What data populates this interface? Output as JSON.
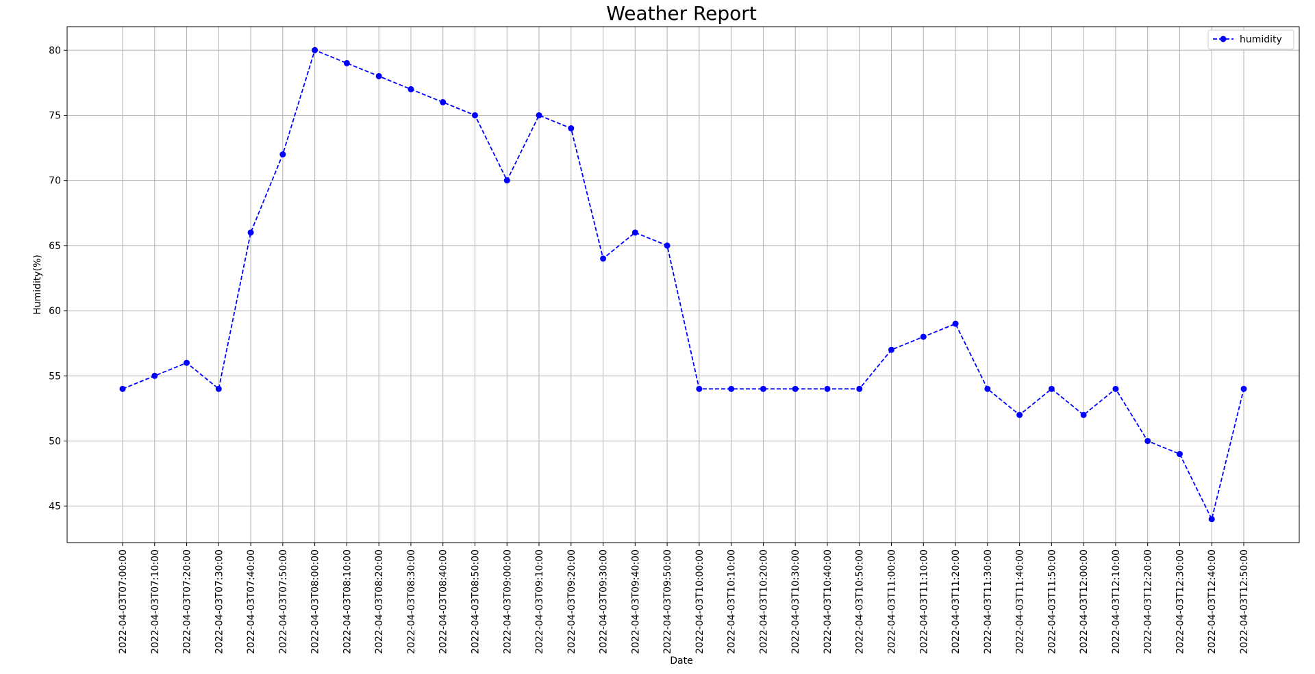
{
  "chart_data": {
    "type": "line",
    "title": "Weather Report",
    "xlabel": "Date",
    "ylabel": "Humidity(%)",
    "ylim": [
      42.2,
      81.8
    ],
    "yticks": [
      45,
      50,
      55,
      60,
      65,
      70,
      75,
      80
    ],
    "grid": true,
    "legend_position": "top-right",
    "x": [
      "2022-04-03T07:00:00",
      "2022-04-03T07:10:00",
      "2022-04-03T07:20:00",
      "2022-04-03T07:30:00",
      "2022-04-03T07:40:00",
      "2022-04-03T07:50:00",
      "2022-04-03T08:00:00",
      "2022-04-03T08:10:00",
      "2022-04-03T08:20:00",
      "2022-04-03T08:30:00",
      "2022-04-03T08:40:00",
      "2022-04-03T08:50:00",
      "2022-04-03T09:00:00",
      "2022-04-03T09:10:00",
      "2022-04-03T09:20:00",
      "2022-04-03T09:30:00",
      "2022-04-03T09:40:00",
      "2022-04-03T09:50:00",
      "2022-04-03T10:00:00",
      "2022-04-03T10:10:00",
      "2022-04-03T10:20:00",
      "2022-04-03T10:30:00",
      "2022-04-03T10:40:00",
      "2022-04-03T10:50:00",
      "2022-04-03T11:00:00",
      "2022-04-03T11:10:00",
      "2022-04-03T11:20:00",
      "2022-04-03T11:30:00",
      "2022-04-03T11:40:00",
      "2022-04-03T11:50:00",
      "2022-04-03T12:00:00",
      "2022-04-03T12:10:00",
      "2022-04-03T12:20:00",
      "2022-04-03T12:30:00",
      "2022-04-03T12:40:00",
      "2022-04-03T12:50:00"
    ],
    "series": [
      {
        "name": "humidity",
        "color": "#0000ff",
        "linestyle": "dashed",
        "marker": "circle",
        "values": [
          54,
          55,
          56,
          54,
          66,
          72,
          80,
          79,
          78,
          77,
          76,
          75,
          70,
          75,
          74,
          64,
          66,
          65,
          54,
          54,
          54,
          54,
          54,
          54,
          57,
          58,
          59,
          54,
          52,
          54,
          52,
          54,
          50,
          49,
          44,
          54
        ]
      }
    ]
  },
  "colors": {
    "grid": "#b0b0b0",
    "axes": "#000000",
    "background": "#ffffff",
    "legend_border": "#cccccc"
  }
}
